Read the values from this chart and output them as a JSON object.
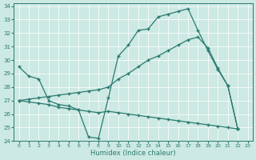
{
  "xlabel": "Humidex (Indice chaleur)",
  "xlim": [
    -0.5,
    23.5
  ],
  "ylim": [
    24,
    34.2
  ],
  "yticks": [
    24,
    25,
    26,
    27,
    28,
    29,
    30,
    31,
    32,
    33,
    34
  ],
  "xticks": [
    0,
    1,
    2,
    3,
    4,
    5,
    6,
    7,
    8,
    9,
    10,
    11,
    12,
    13,
    14,
    15,
    16,
    17,
    18,
    19,
    20,
    21,
    22,
    23
  ],
  "bg_color": "#cce9e3",
  "line_color": "#2a7a70",
  "line1_x": [
    0,
    1,
    2,
    3,
    4,
    5,
    6,
    7,
    8,
    9,
    10,
    11,
    12,
    13,
    14,
    15,
    16,
    17,
    18,
    19,
    20,
    21,
    22
  ],
  "line1_y": [
    29.5,
    28.8,
    28.6,
    27.0,
    26.7,
    26.6,
    26.3,
    24.3,
    24.2,
    27.2,
    30.3,
    31.1,
    32.2,
    32.3,
    33.2,
    33.4,
    33.6,
    33.8,
    32.2,
    30.7,
    29.3,
    28.1,
    24.9
  ],
  "line2_x": [
    0,
    1,
    2,
    3,
    4,
    5,
    6,
    7,
    8,
    9,
    10,
    11,
    12,
    13,
    14,
    15,
    16,
    17,
    18,
    19,
    20,
    21,
    22
  ],
  "line2_y": [
    27.0,
    27.1,
    27.2,
    27.3,
    27.4,
    27.5,
    27.6,
    27.7,
    27.8,
    28.0,
    28.6,
    29.0,
    29.5,
    30.0,
    30.3,
    30.7,
    31.1,
    31.5,
    31.7,
    30.9,
    29.4,
    28.1,
    24.9
  ],
  "line3_x": [
    0,
    1,
    2,
    3,
    4,
    5,
    6,
    7,
    8,
    9,
    10,
    11,
    12,
    13,
    14,
    15,
    16,
    17,
    18,
    19,
    20,
    21,
    22
  ],
  "line3_y": [
    27.0,
    26.9,
    26.8,
    26.7,
    26.5,
    26.4,
    26.3,
    26.2,
    26.1,
    26.2,
    26.1,
    26.0,
    25.9,
    25.8,
    25.7,
    25.6,
    25.5,
    25.4,
    25.3,
    25.2,
    25.1,
    25.0,
    24.9
  ]
}
